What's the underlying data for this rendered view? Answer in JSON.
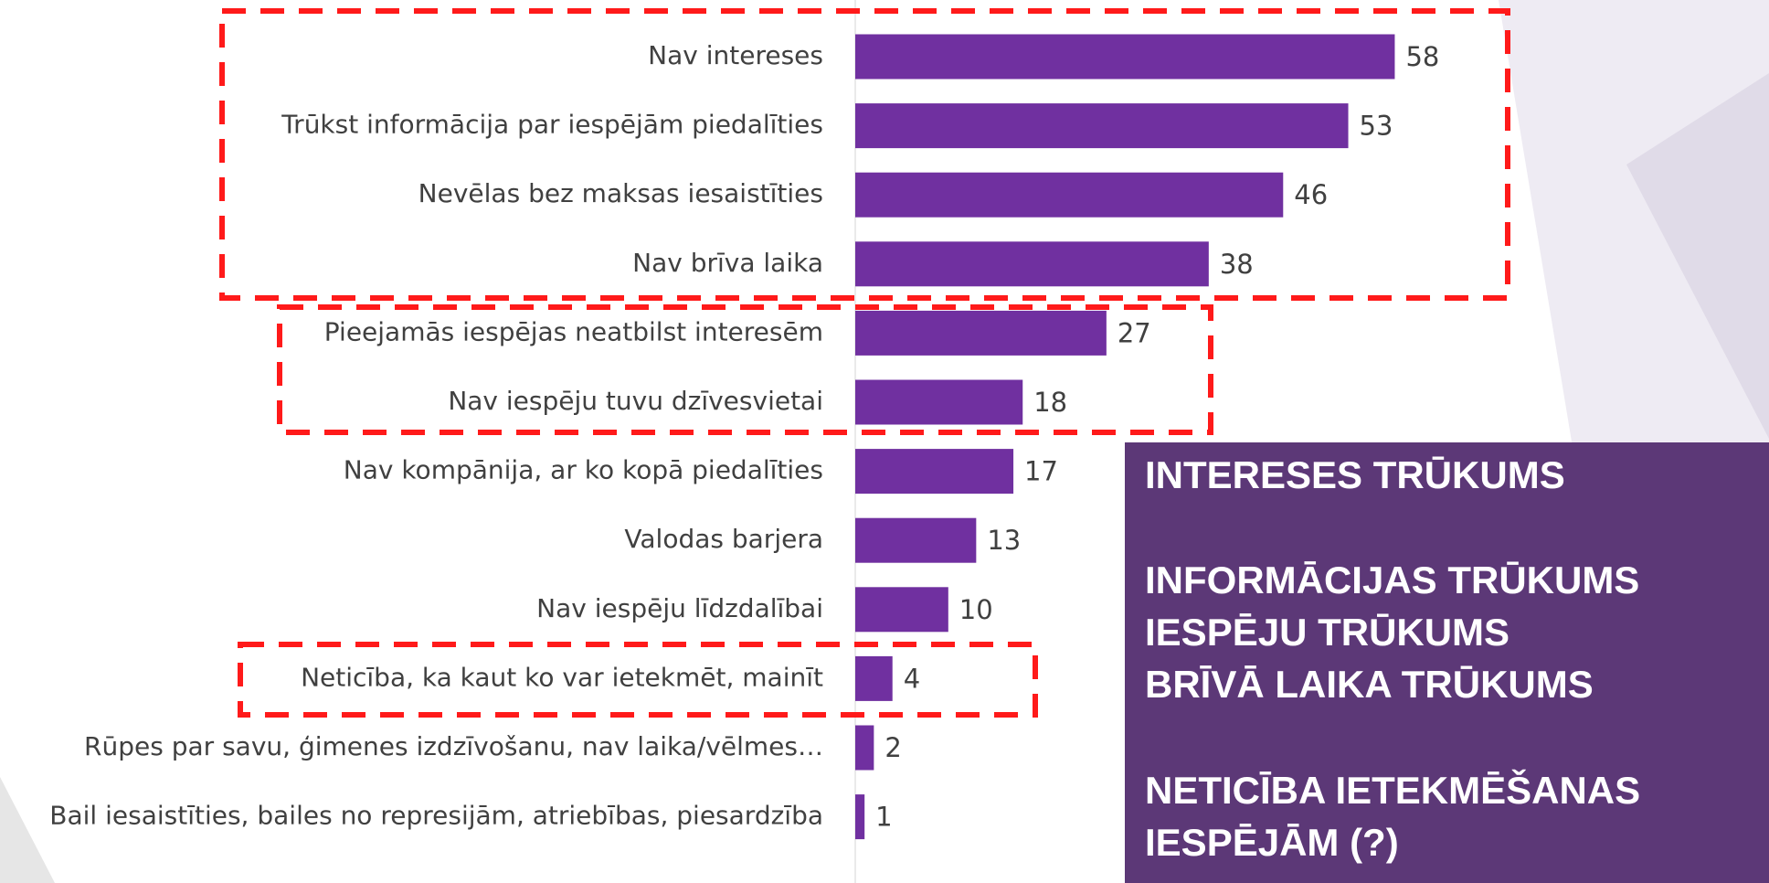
{
  "chart_data": {
    "type": "bar",
    "orientation": "horizontal",
    "categories": [
      "Nav intereses",
      "Trūkst informācija par iespējām piedalīties",
      "Nevēlas bez maksas iesaistīties",
      "Nav brīva laika",
      "Pieejamās iespējas neatbilst interesēm",
      "Nav iespēju tuvu dzīvesvietai",
      "Nav kompānija, ar ko kopā piedalīties",
      "Valodas barjera",
      "Nav iespēju līdzdalībai",
      "Neticība, ka kaut ko var ietekmēt, mainīt",
      "Rūpes par savu, ģimenes izdzīvošanu, nav laika/vēlmes…",
      "Bail iesaistīties, bailes no represijām, atriebības, piesardzība"
    ],
    "values": [
      58,
      53,
      46,
      38,
      27,
      18,
      17,
      13,
      10,
      4,
      2,
      1
    ],
    "color": "#7030a0",
    "annotations": [
      "INTERESES TRŪKUMS",
      "INFORMĀCIJAS TRŪKUMS",
      "IESPĒJU TRŪKUMS",
      "BRĪVĀ LAIKA TRŪKUMS",
      "NETICĪBA IETEKMĒŠANAS",
      "IESPĒJĀM (?)"
    ]
  }
}
